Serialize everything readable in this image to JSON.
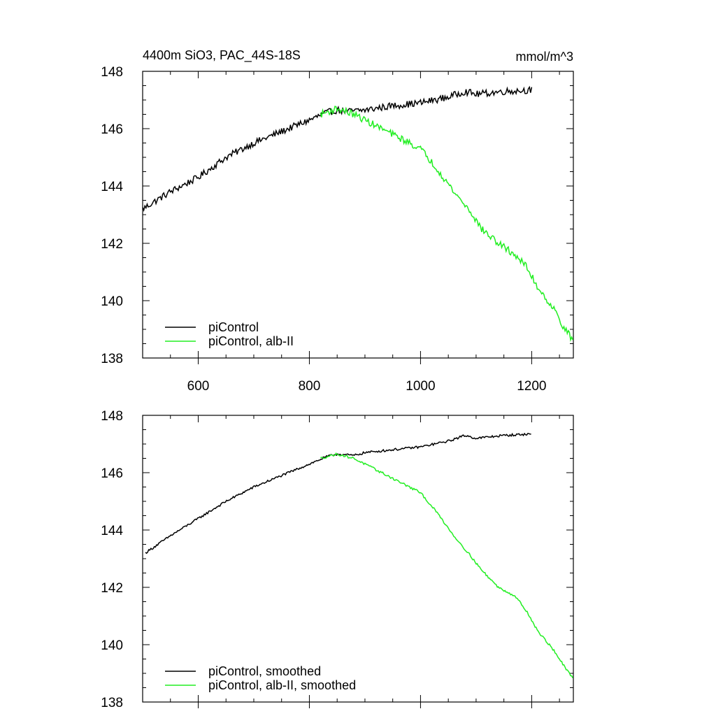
{
  "figure": {
    "title_left": "4400m SiO3, PAC_44S-18S",
    "title_right": "mmol/m^3"
  },
  "colors": {
    "control": "#000000",
    "experiment": "#22ee22"
  },
  "chart_data": [
    {
      "type": "line",
      "panel": "top",
      "xlim": [
        500,
        1275
      ],
      "ylim": [
        138,
        148
      ],
      "x_ticks": [
        600,
        800,
        1000,
        1200
      ],
      "x_tick_labels": [
        "600",
        "800",
        "1000",
        "1200"
      ],
      "y_ticks": [
        138,
        140,
        142,
        144,
        146,
        148
      ],
      "y_tick_labels": [
        "138",
        "140",
        "142",
        "144",
        "146",
        "148"
      ],
      "grid": false,
      "legend_position": "bottom-left",
      "noise": 0.12,
      "series": [
        {
          "name": "piControl",
          "color": "#000000",
          "points": [
            [
              500,
              143.2
            ],
            [
              550,
              143.8
            ],
            [
              600,
              144.3
            ],
            [
              650,
              145.0
            ],
            [
              700,
              145.5
            ],
            [
              750,
              145.9
            ],
            [
              800,
              146.3
            ],
            [
              830,
              146.55
            ],
            [
              850,
              146.65
            ],
            [
              870,
              146.6
            ],
            [
              900,
              146.65
            ],
            [
              950,
              146.8
            ],
            [
              1000,
              146.9
            ],
            [
              1050,
              147.1
            ],
            [
              1080,
              147.3
            ],
            [
              1100,
              147.2
            ],
            [
              1150,
              147.3
            ],
            [
              1200,
              147.35
            ]
          ]
        },
        {
          "name": "piControl, alb-II",
          "color": "#22ee22",
          "points": [
            [
              820,
              146.5
            ],
            [
              850,
              146.7
            ],
            [
              880,
              146.5
            ],
            [
              900,
              146.3
            ],
            [
              930,
              146.0
            ],
            [
              960,
              145.7
            ],
            [
              1000,
              145.3
            ],
            [
              1030,
              144.6
            ],
            [
              1060,
              143.8
            ],
            [
              1090,
              143.1
            ],
            [
              1110,
              142.5
            ],
            [
              1140,
              142.0
            ],
            [
              1170,
              141.6
            ],
            [
              1190,
              141.2
            ],
            [
              1210,
              140.5
            ],
            [
              1240,
              139.7
            ],
            [
              1260,
              139.0
            ],
            [
              1275,
              138.6
            ]
          ]
        }
      ]
    },
    {
      "type": "line",
      "panel": "bottom",
      "xlim": [
        500,
        1275
      ],
      "ylim": [
        138,
        148
      ],
      "x_ticks": [
        600,
        800,
        1000,
        1200
      ],
      "x_tick_labels": [],
      "y_ticks": [
        138,
        140,
        142,
        144,
        146,
        148
      ],
      "y_tick_labels": [
        "138",
        "140",
        "142",
        "144",
        "146",
        "148"
      ],
      "grid": false,
      "legend_position": "bottom-left",
      "noise": 0.04,
      "series": [
        {
          "name": "piControl, smoothed",
          "color": "#000000",
          "points": [
            [
              505,
              143.2
            ],
            [
              550,
              143.8
            ],
            [
              600,
              144.4
            ],
            [
              650,
              145.0
            ],
            [
              700,
              145.5
            ],
            [
              750,
              145.9
            ],
            [
              800,
              146.3
            ],
            [
              830,
              146.55
            ],
            [
              850,
              146.65
            ],
            [
              880,
              146.6
            ],
            [
              900,
              146.7
            ],
            [
              950,
              146.8
            ],
            [
              1000,
              146.9
            ],
            [
              1050,
              147.1
            ],
            [
              1080,
              147.3
            ],
            [
              1100,
              147.2
            ],
            [
              1150,
              147.3
            ],
            [
              1200,
              147.35
            ]
          ]
        },
        {
          "name": "piControl, alb-II, smoothed",
          "color": "#22ee22",
          "points": [
            [
              820,
              146.5
            ],
            [
              850,
              146.65
            ],
            [
              880,
              146.5
            ],
            [
              900,
              146.3
            ],
            [
              930,
              146.0
            ],
            [
              960,
              145.7
            ],
            [
              1000,
              145.3
            ],
            [
              1030,
              144.6
            ],
            [
              1060,
              143.8
            ],
            [
              1090,
              143.1
            ],
            [
              1110,
              142.6
            ],
            [
              1140,
              142.0
            ],
            [
              1170,
              141.7
            ],
            [
              1190,
              141.2
            ],
            [
              1210,
              140.5
            ],
            [
              1240,
              139.8
            ],
            [
              1260,
              139.2
            ],
            [
              1275,
              138.8
            ]
          ]
        }
      ]
    }
  ]
}
